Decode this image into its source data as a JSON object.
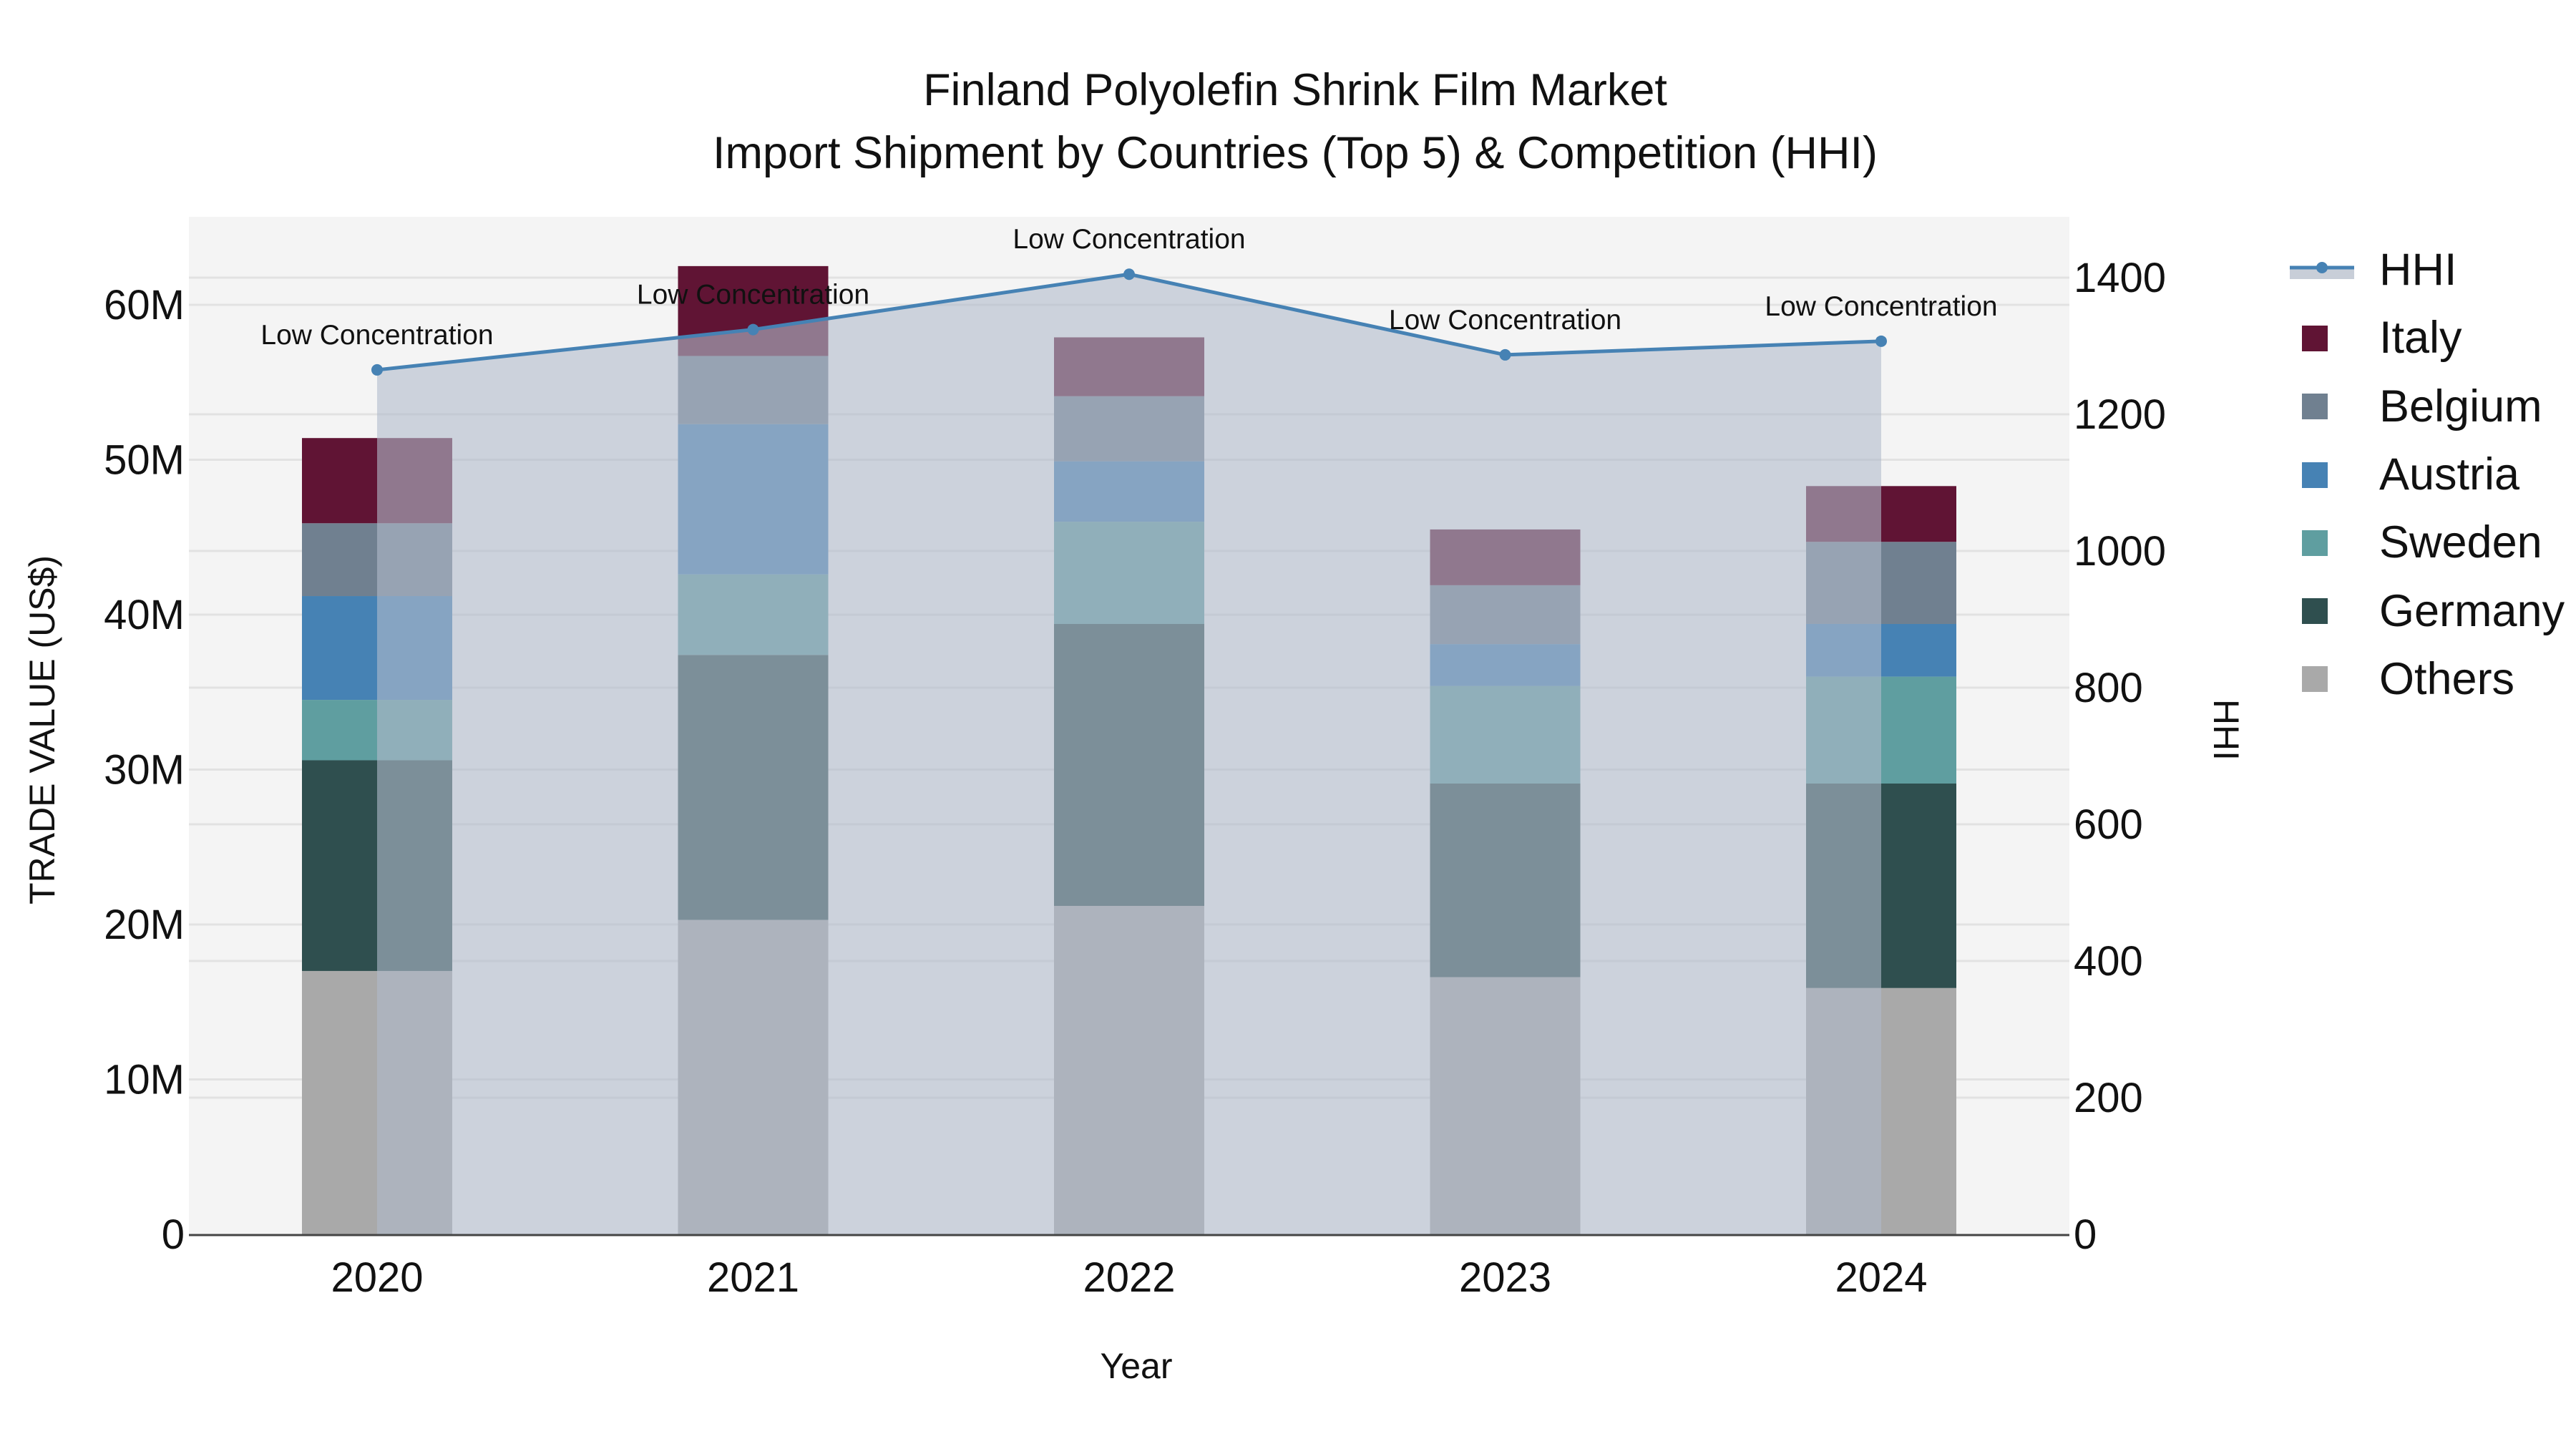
{
  "title": {
    "line1": "Finland Polyolefin Shrink Film Market",
    "line2": "Import Shipment by Countries (Top 5) & Competition (HHI)"
  },
  "axes": {
    "x_title": "Year",
    "y_left_title": "TRADE VALUE (US$)",
    "y_right_title": "HHI",
    "y_left_ticks": [
      "0",
      "10M",
      "20M",
      "30M",
      "40M",
      "50M",
      "60M"
    ],
    "y_right_ticks": [
      "0",
      "200",
      "400",
      "600",
      "800",
      "1000",
      "1200",
      "1400"
    ]
  },
  "legend": {
    "items": [
      {
        "label": "HHI",
        "type": "line",
        "color": "#4682b4"
      },
      {
        "label": "Italy",
        "type": "bar",
        "color": "#601434"
      },
      {
        "label": "Belgium",
        "type": "bar",
        "color": "#708090"
      },
      {
        "label": "Austria",
        "type": "bar",
        "color": "#4682b4"
      },
      {
        "label": "Sweden",
        "type": "bar",
        "color": "#5f9ea0"
      },
      {
        "label": "Germany",
        "type": "bar",
        "color": "#2f4f4f"
      },
      {
        "label": "Others",
        "type": "bar",
        "color": "#a9a9a9"
      }
    ]
  },
  "colors": {
    "plot_bg": "#f4f4f4",
    "hhi_line": "#4682b4",
    "hhi_fill": "rgba(176,186,204,0.6)",
    "grid": "#e2e2e2",
    "axis_line": "#444444"
  },
  "chart_data": {
    "type": "bar",
    "subtype": "stacked bar + line (dual axis)",
    "title": "Finland Polyolefin Shrink Film Market — Import Shipment by Countries (Top 5) & Competition (HHI)",
    "xlabel": "Year",
    "ylabel": "TRADE VALUE (US$)",
    "y2label": "HHI",
    "categories": [
      "2020",
      "2021",
      "2022",
      "2023",
      "2024"
    ],
    "ylim": [
      0,
      65500000
    ],
    "y2lim": [
      0,
      1490
    ],
    "grid": true,
    "legend_position": "right",
    "series": [
      {
        "name": "Others",
        "axis": "y",
        "type": "bar",
        "values": [
          17000000,
          20300000,
          21200000,
          16600000,
          15900000
        ]
      },
      {
        "name": "Germany",
        "axis": "y",
        "type": "bar",
        "values": [
          13600000,
          17100000,
          18200000,
          12500000,
          13200000
        ]
      },
      {
        "name": "Sweden",
        "axis": "y",
        "type": "bar",
        "values": [
          3900000,
          5200000,
          6600000,
          6300000,
          6900000
        ]
      },
      {
        "name": "Austria",
        "axis": "y",
        "type": "bar",
        "values": [
          6700000,
          9700000,
          3900000,
          2700000,
          3400000
        ]
      },
      {
        "name": "Belgium",
        "axis": "y",
        "type": "bar",
        "values": [
          4700000,
          4400000,
          4200000,
          3800000,
          5300000
        ]
      },
      {
        "name": "Italy",
        "axis": "y",
        "type": "bar",
        "values": [
          5500000,
          5800000,
          3800000,
          3600000,
          3600000
        ]
      },
      {
        "name": "HHI",
        "axis": "y2",
        "type": "line+area",
        "values": [
          1265,
          1324,
          1405,
          1287,
          1307
        ]
      }
    ],
    "annotations": [
      "Low Concentration",
      "Low Concentration",
      "Low Concentration",
      "Low Concentration",
      "Low Concentration"
    ]
  }
}
